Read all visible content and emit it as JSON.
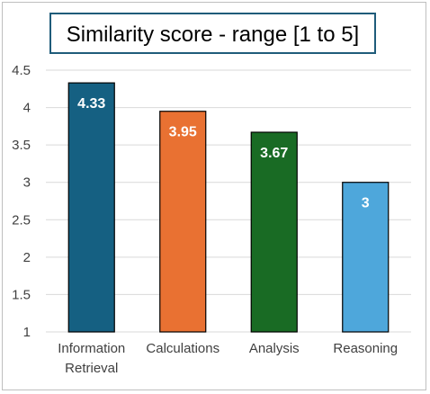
{
  "chart_data": {
    "type": "bar",
    "title": "Similarity score - range [1 to 5]",
    "xlabel": "",
    "ylabel": "",
    "categories": [
      "Information Retrieval",
      "Calculations",
      "Analysis",
      "Reasoning"
    ],
    "category_lines": [
      [
        "Information",
        "Retrieval"
      ],
      [
        "Calculations"
      ],
      [
        "Analysis"
      ],
      [
        "Reasoning"
      ]
    ],
    "values": [
      4.33,
      3.95,
      3.67,
      3
    ],
    "data_labels": [
      "4.33",
      "3.95",
      "3.67",
      "3"
    ],
    "bar_colors": [
      "#156082",
      "#E97132",
      "#196B24",
      "#4EA7DB"
    ],
    "bar_outline_color": "#000000",
    "title_box_color": "#1F5C7A",
    "ylim": [
      1,
      4.5
    ],
    "yticks": [
      1,
      1.5,
      2,
      2.5,
      3,
      3.5,
      4,
      4.5
    ],
    "ytick_labels": [
      "1",
      "1.5",
      "2",
      "2.5",
      "3",
      "3.5",
      "4",
      "4.5"
    ],
    "grid": true,
    "grid_color": "#d9d9d9",
    "legend": "none"
  }
}
